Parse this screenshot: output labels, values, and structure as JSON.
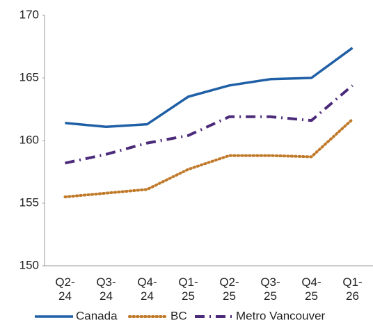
{
  "chart_data": {
    "type": "line",
    "categories": [
      "Q2-24",
      "Q3-24",
      "Q4-24",
      "Q1-25",
      "Q2-25",
      "Q3-25",
      "Q4-25",
      "Q1-26"
    ],
    "series": [
      {
        "name": "Canada",
        "color": "#1f5fa6",
        "style": "solid",
        "values": [
          161.4,
          161.1,
          161.3,
          163.5,
          164.4,
          164.9,
          165.0,
          167.4
        ]
      },
      {
        "name": "BC",
        "color": "#c07a2a",
        "style": "dotted",
        "values": [
          155.5,
          155.8,
          156.1,
          157.7,
          158.8,
          158.8,
          158.7,
          161.7
        ]
      },
      {
        "name": "Metro Vancouver",
        "color": "#4b2a7a",
        "style": "dashdot",
        "values": [
          158.2,
          158.9,
          159.8,
          160.4,
          161.9,
          161.9,
          161.6,
          164.4
        ]
      }
    ],
    "ylim": [
      150,
      170
    ],
    "yticks": [
      150,
      155,
      160,
      165,
      170
    ],
    "grid": false,
    "legend": "bottom"
  }
}
